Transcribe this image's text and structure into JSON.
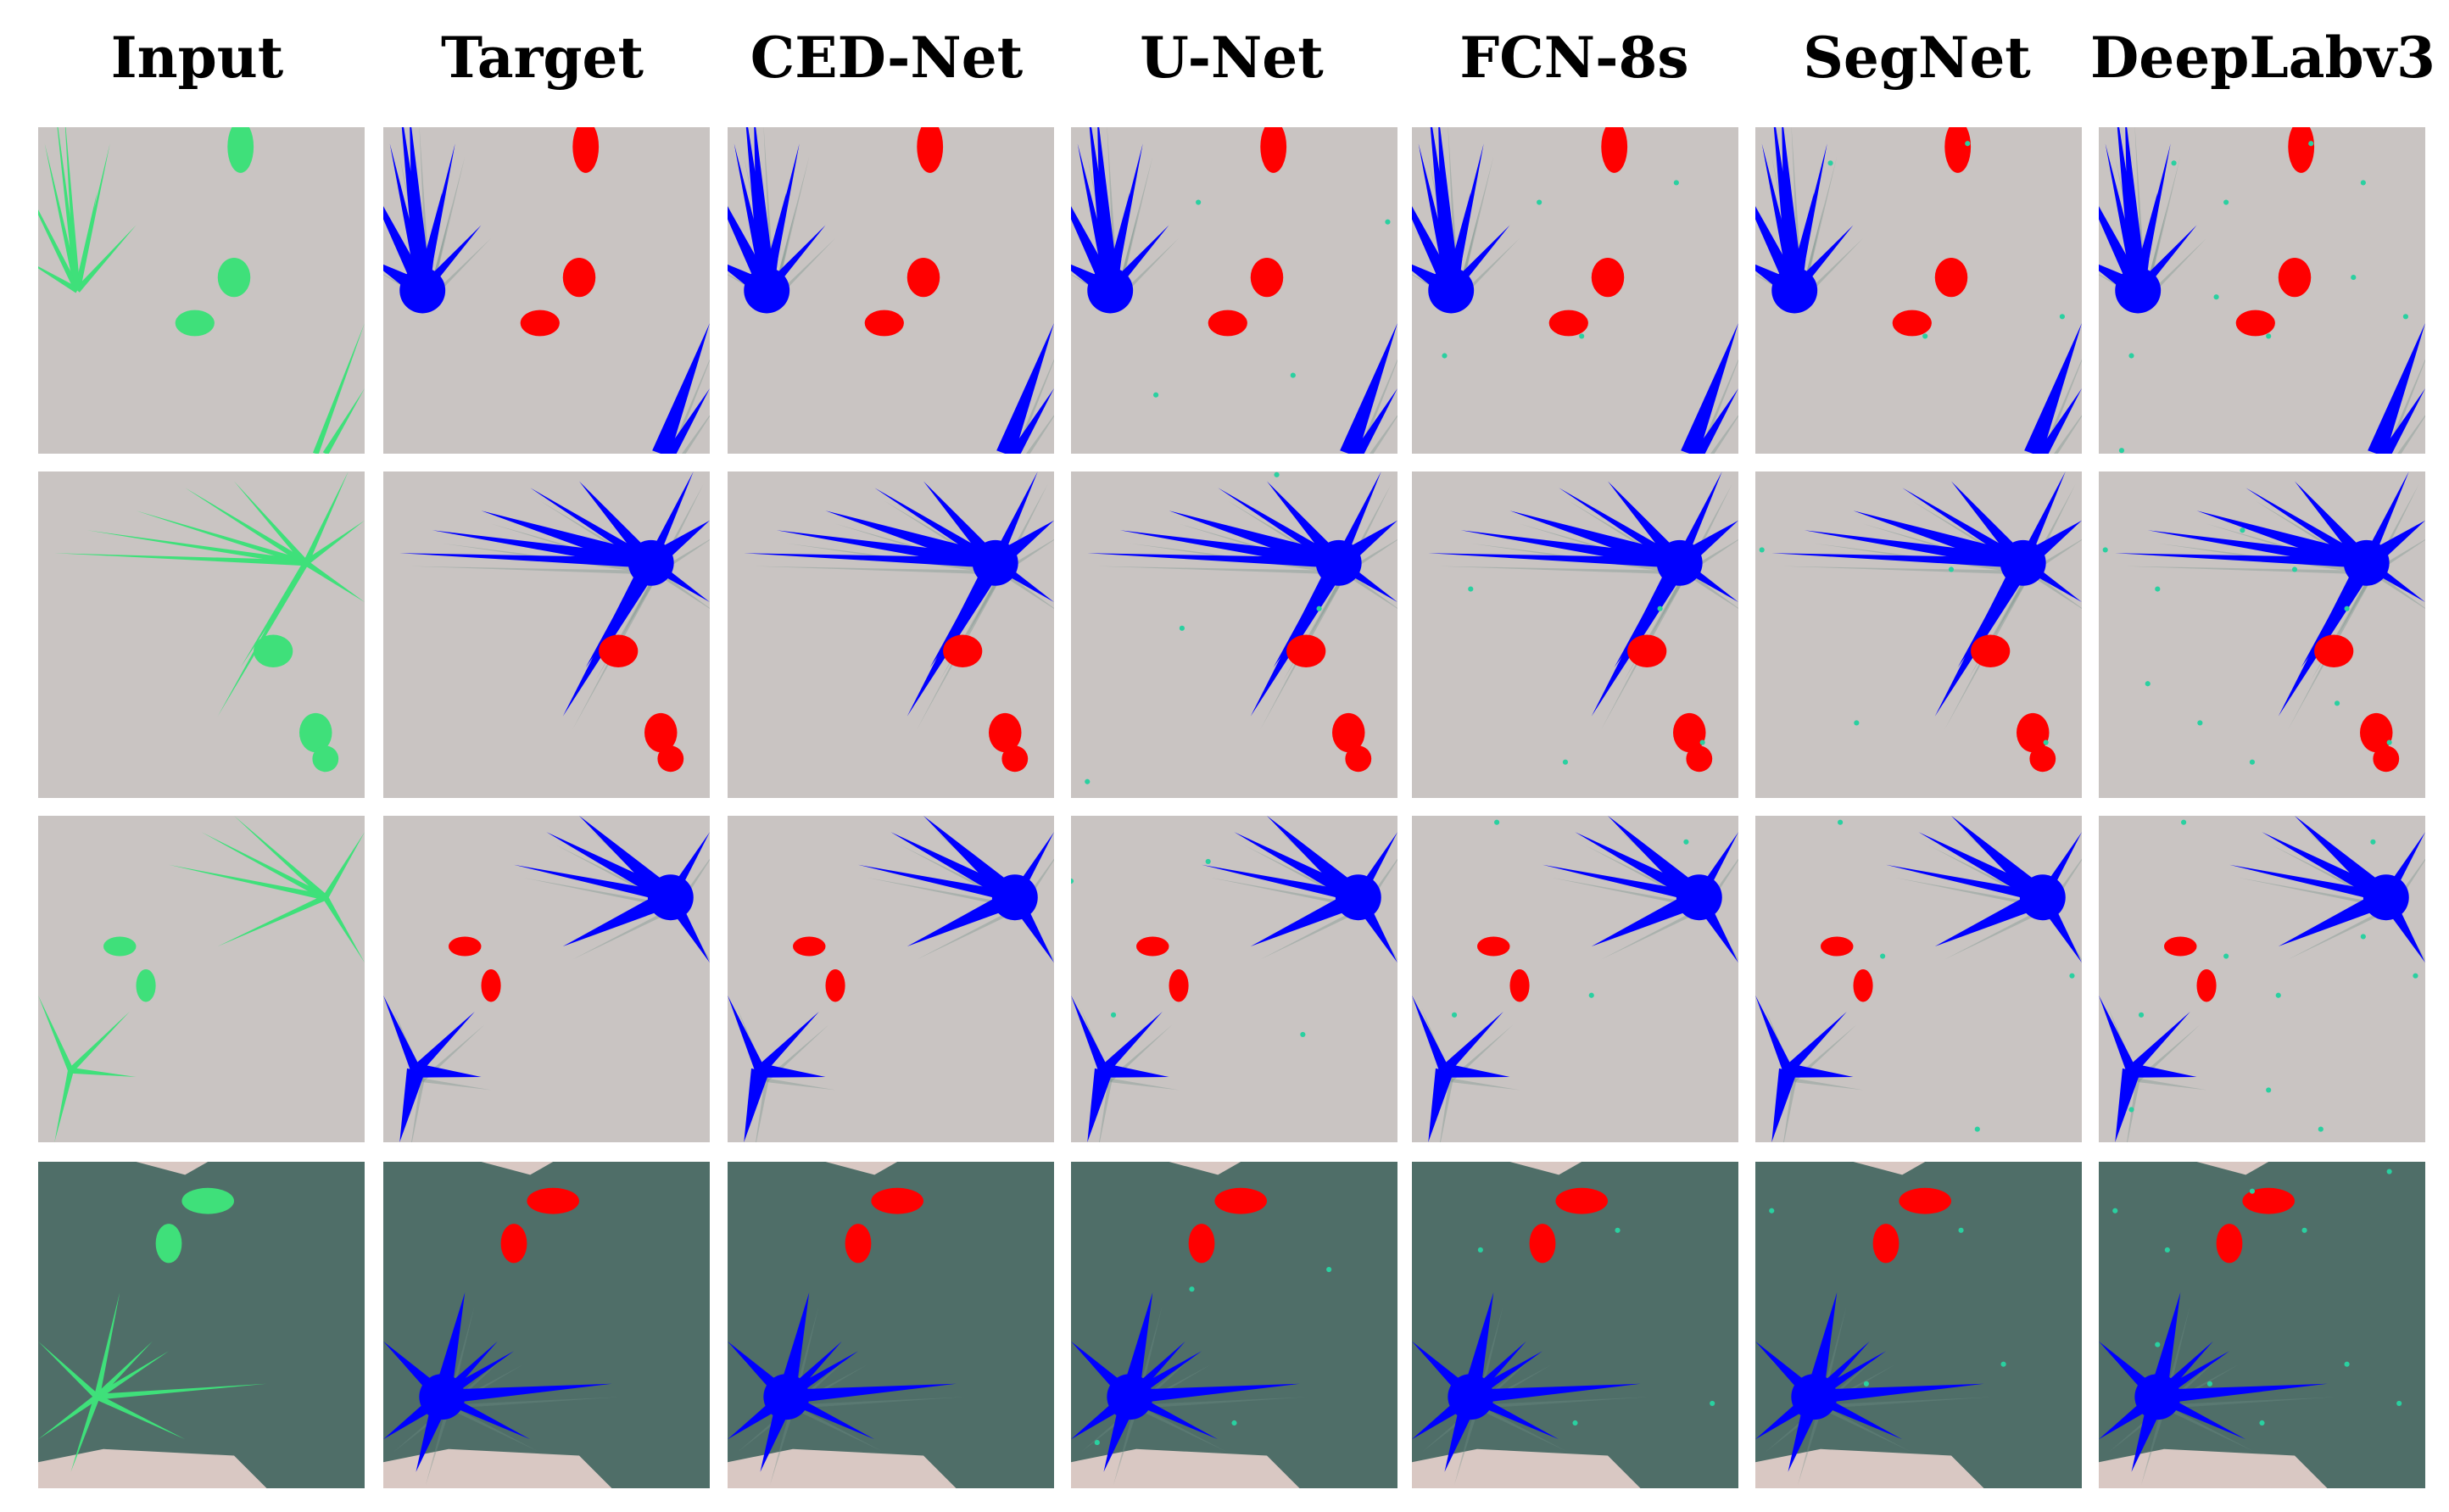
{
  "figure": {
    "columns": [
      {
        "id": "input",
        "label": "Input"
      },
      {
        "id": "target",
        "label": "Target"
      },
      {
        "id": "ced-net",
        "label": "CED-Net"
      },
      {
        "id": "u-net",
        "label": "U-Net"
      },
      {
        "id": "fcn-8s",
        "label": "FCN-8s"
      },
      {
        "id": "segnet",
        "label": "SegNet"
      },
      {
        "id": "deeplabv3",
        "label": "DeepLabv3"
      }
    ],
    "rows": [
      {
        "id": "row-1",
        "background": "light-soil"
      },
      {
        "id": "row-2",
        "background": "light-soil"
      },
      {
        "id": "row-3",
        "background": "light-soil"
      },
      {
        "id": "row-4",
        "background": "dark-soil"
      }
    ],
    "colors": {
      "weed_mask": "#0000ff",
      "crop_mask": "#ff0000",
      "plant_green": "#3fe07a",
      "light_soil": "#c9c4c2",
      "dark_soil": "#4f6e68",
      "error_pixels": "#2ad0a0"
    }
  }
}
